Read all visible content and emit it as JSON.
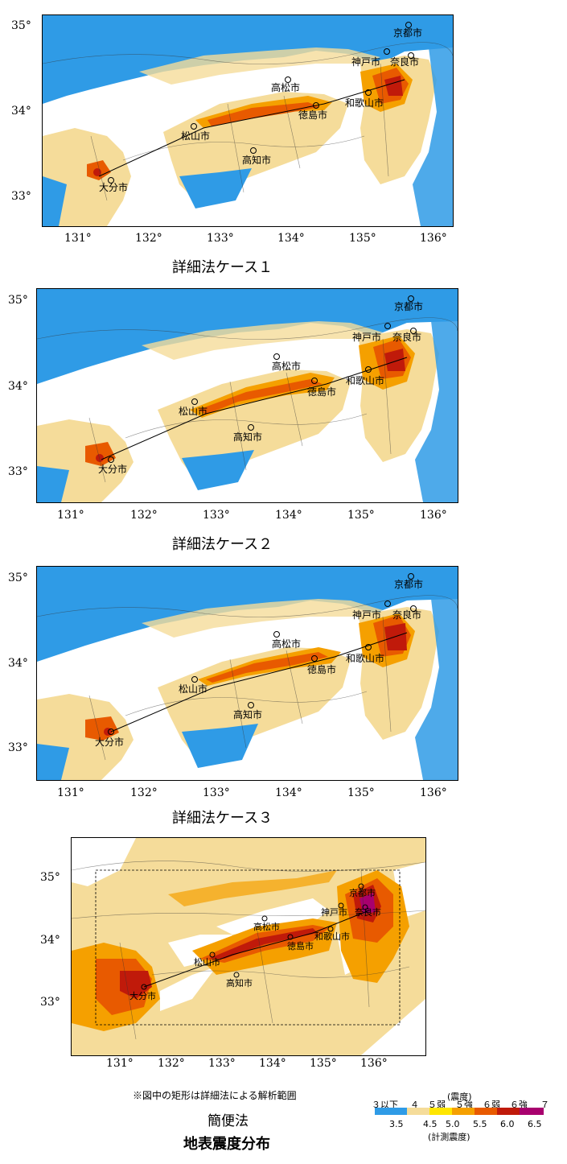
{
  "panels": [
    {
      "caption": "詳細法ケース１",
      "lat_labels": [
        "35°",
        "34°",
        "33°"
      ],
      "lon_labels": [
        "131°",
        "132°",
        "133°",
        "134°",
        "135°",
        "136°"
      ],
      "cities": [
        "京都市",
        "神戸市",
        "奈良市",
        "高松市",
        "和歌山市",
        "徳島市",
        "松山市",
        "高知市",
        "大分市"
      ]
    },
    {
      "caption": "詳細法ケース２",
      "lat_labels": [
        "35°",
        "34°",
        "33°"
      ],
      "lon_labels": [
        "131°",
        "132°",
        "133°",
        "134°",
        "135°",
        "136°"
      ],
      "cities": [
        "京都市",
        "神戸市",
        "奈良市",
        "高松市",
        "和歌山市",
        "徳島市",
        "松山市",
        "高知市",
        "大分市"
      ]
    },
    {
      "caption": "詳細法ケース３",
      "lat_labels": [
        "35°",
        "34°",
        "33°"
      ],
      "lon_labels": [
        "131°",
        "132°",
        "133°",
        "134°",
        "135°",
        "136°"
      ],
      "cities": [
        "京都市",
        "神戸市",
        "奈良市",
        "高松市",
        "和歌山市",
        "徳島市",
        "松山市",
        "高知市",
        "大分市"
      ]
    },
    {
      "caption": "",
      "lat_labels": [
        "35°",
        "34°",
        "33°"
      ],
      "lon_labels": [
        "131°",
        "132°",
        "133°",
        "134°",
        "135°",
        "136°"
      ],
      "cities": [
        "京都市",
        "神戸市",
        "奈良市",
        "高松市",
        "和歌山市",
        "徳島市",
        "松山市",
        "高知市",
        "大分市"
      ]
    }
  ],
  "note": "※図中の矩形は詳細法による解析範囲",
  "bottom_title": "簡便法",
  "bottom_subtitle": "地表震度分布",
  "legend": {
    "top_title": "(震度)",
    "bottom_title": "(計測震度)",
    "classes": [
      "３以下",
      "４",
      "５弱",
      "５強",
      "６弱",
      "６強",
      "７"
    ],
    "values": [
      "3.5",
      "4.5",
      "5.0",
      "5.5",
      "6.0",
      "6.5"
    ],
    "colors": [
      "#2f9be6",
      "#f5dc9a",
      "#ffe600",
      "#f5a000",
      "#e85a00",
      "#c01a0a",
      "#a8006e"
    ]
  }
}
